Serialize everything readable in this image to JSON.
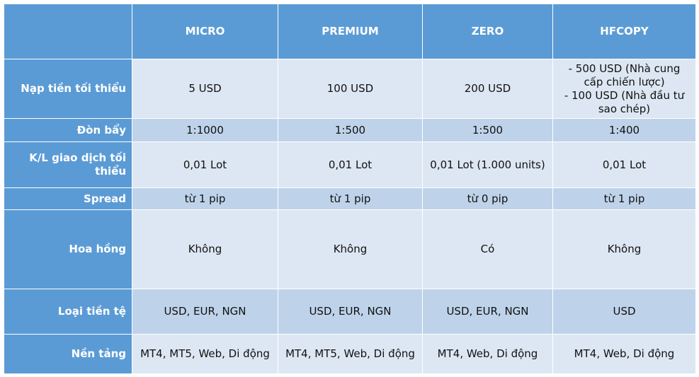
{
  "columns": [
    "MICRO",
    "PREMIUM",
    "ZERO",
    "HFCOPY"
  ],
  "rows": [
    {
      "label": "Nạp tiền tối thiểu",
      "values": [
        "5 USD",
        "100 USD",
        "200 USD"
      ],
      "hfcopy_lines": [
        "-  500 USD (Nhà cung",
        "cấp chiến lược)",
        "- 100 USD (Nhà đầu tư",
        "sao chép)"
      ]
    },
    {
      "label": "Đòn bẩy",
      "values": [
        "1:1000",
        "1:500",
        "1:500",
        "1:400"
      ]
    },
    {
      "label_lines": [
        "K/L giao dịch tối",
        "thiểu"
      ],
      "values": [
        "0,01 Lot",
        "0,01 Lot",
        "0,01 Lot (1.000 units)",
        "0,01 Lot"
      ]
    },
    {
      "label": "Spread",
      "values": [
        "từ 1 pip",
        "từ 1 pip",
        "từ 0 pip",
        "từ 1 pip"
      ]
    },
    {
      "label": "Hoa hồng",
      "values": [
        "Không",
        "Không",
        "Có",
        "Không"
      ]
    },
    {
      "label": "Loại tiền tệ",
      "values": [
        "USD, EUR, NGN",
        "USD, EUR, NGN",
        "USD, EUR, NGN",
        "USD"
      ]
    },
    {
      "label": "Nền tảng",
      "values": [
        "MT4, MT5, Web, Di động",
        "MT4, MT5, Web, Di động",
        "MT4, Web, Di động",
        "MT4, Web, Di động"
      ]
    }
  ]
}
